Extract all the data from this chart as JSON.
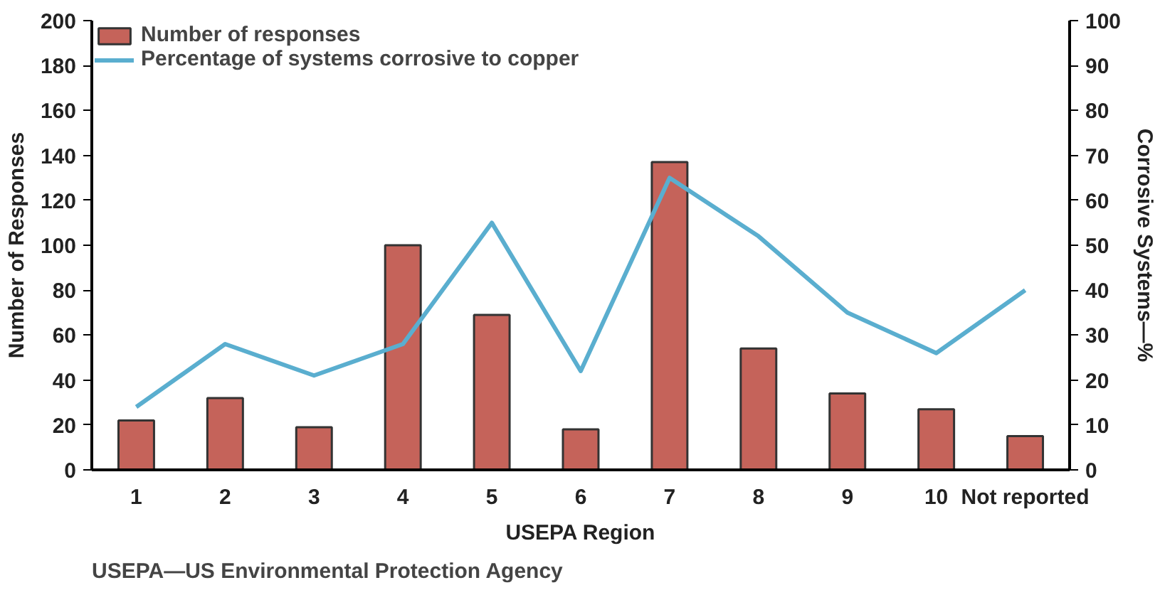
{
  "chart_data": {
    "type": "bar",
    "categories": [
      "1",
      "2",
      "3",
      "4",
      "5",
      "6",
      "7",
      "8",
      "9",
      "10",
      "Not reported"
    ],
    "xlabel": "USEPA Region",
    "ylabel": "Number of Responses",
    "y2label": "Corrosive Systems—%",
    "series": [
      {
        "name": "Number of responses",
        "color": "#c5635a",
        "values": [
          22,
          32,
          19,
          100,
          69,
          18,
          137,
          54,
          34,
          27,
          15
        ]
      },
      {
        "name": "Percentage of systems corrosive to copper",
        "type": "line",
        "axis": "y2",
        "color": "#5aaecf",
        "values": [
          14,
          28,
          21,
          28,
          55,
          22,
          65,
          52,
          35,
          26,
          40
        ]
      }
    ],
    "ylim": [
      0,
      200
    ],
    "yticks": [
      0,
      20,
      40,
      60,
      80,
      100,
      120,
      140,
      160,
      180,
      200
    ],
    "y2lim": [
      0,
      100
    ],
    "y2ticks": [
      0,
      10,
      20,
      30,
      40,
      50,
      60,
      70,
      80,
      90,
      100
    ],
    "legend": "top left",
    "grid": false,
    "annotations": [
      "USEPA—US Environmental Protection Agency"
    ]
  }
}
